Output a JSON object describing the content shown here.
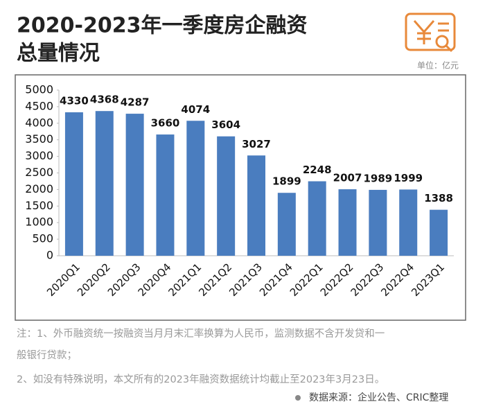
{
  "chart_data": {
    "type": "bar",
    "title": [
      "2020-2023年一季度房企融资",
      "总量情况"
    ],
    "unit": "单位：亿元",
    "categories": [
      "2020Q1",
      "2020Q2",
      "2020Q3",
      "2020Q4",
      "2021Q1",
      "2021Q2",
      "2021Q3",
      "2021Q4",
      "2022Q1",
      "2022Q2",
      "2022Q3",
      "2022Q4",
      "2023Q1"
    ],
    "values": [
      4330,
      4368,
      4287,
      3660,
      4074,
      3604,
      3027,
      1899,
      2248,
      2007,
      1989,
      1999,
      1388
    ],
    "color": "#4a7dbf",
    "ylim": [
      0,
      5000
    ],
    "yticks": [
      0,
      500,
      1000,
      1500,
      2000,
      2500,
      3000,
      3500,
      4000,
      4500,
      5000
    ],
    "grid": false,
    "notes": [
      "注：1、外币融资统一按融资当月月末汇率换算为人民币，监测数据不含开发贷和一",
      "般银行贷款；",
      "2、如没有特殊说明，本文所有的2023年融资数据统计均截止至2023年3月23日。"
    ],
    "source": "数据来源：企业公告、CRIC整理"
  }
}
